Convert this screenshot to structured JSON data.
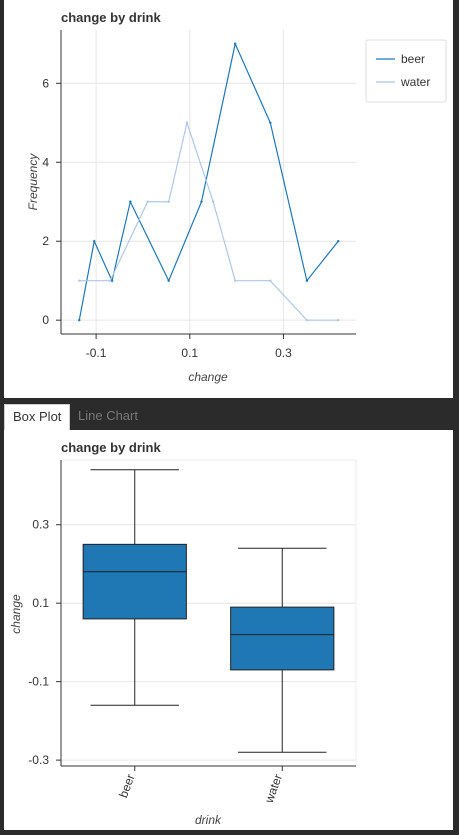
{
  "tabs": [
    {
      "label": "Box Plot",
      "active": true
    },
    {
      "label": "Line Chart",
      "active": false
    }
  ],
  "chart_data": [
    {
      "type": "line",
      "title": "change by drink",
      "xlabel": "change",
      "ylabel": "Frequency",
      "xlim": [
        -0.175,
        0.455
      ],
      "ylim": [
        -0.35,
        7.35
      ],
      "xticks": [
        -0.1,
        0.1,
        0.3
      ],
      "xtick_labels": [
        "-0.1",
        "0.1",
        "0.3"
      ],
      "yticks": [
        0,
        2,
        4,
        6
      ],
      "ytick_labels": [
        "0",
        "2",
        "4",
        "6"
      ],
      "grid": true,
      "legend": "top-right",
      "series": [
        {
          "name": "beer",
          "color": "#1f77b4",
          "x": [
            -0.136,
            -0.104,
            -0.066,
            -0.027,
            0.055,
            0.125,
            0.197,
            0.272,
            0.35,
            0.417
          ],
          "y": [
            0,
            2,
            1,
            3,
            1,
            3,
            7,
            5,
            1,
            2
          ]
        },
        {
          "name": "water",
          "color": "#aec7e8",
          "x": [
            -0.136,
            -0.07,
            0.01,
            0.055,
            0.094,
            0.15,
            0.197,
            0.272,
            0.35,
            0.417
          ],
          "y": [
            1,
            1,
            3,
            3,
            5,
            3,
            1,
            1,
            0,
            0
          ]
        }
      ]
    },
    {
      "type": "box",
      "title": "change by drink",
      "xlabel": "drink",
      "ylabel": "change",
      "categories": [
        "beer",
        "water"
      ],
      "ylim": [
        -0.315,
        0.465
      ],
      "yticks": [
        -0.3,
        -0.1,
        0.1,
        0.3
      ],
      "ytick_labels": [
        "-0.3",
        "-0.1",
        "0.1",
        "0.3"
      ],
      "grid": true,
      "color": "#1f77b4",
      "boxes": [
        {
          "category": "beer",
          "min": -0.16,
          "q1": 0.06,
          "median": 0.18,
          "q3": 0.25,
          "max": 0.44
        },
        {
          "category": "water",
          "min": -0.28,
          "q1": -0.07,
          "median": 0.02,
          "q3": 0.09,
          "max": 0.24
        }
      ]
    }
  ]
}
